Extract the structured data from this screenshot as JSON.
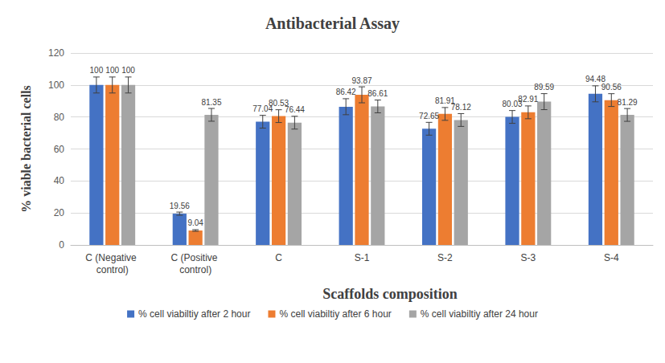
{
  "chart_data": {
    "type": "bar",
    "title": "Antibacterial Assay",
    "x_label": "Scaffolds composition",
    "y_label": "% viable bacterial cells",
    "categories": [
      "C (Negative control)",
      "C (Positive control)",
      "C",
      "S-1",
      "S-2",
      "S-3",
      "S-4"
    ],
    "series": [
      {
        "name": "% cell viabiltiy after 2 hour",
        "color": "#4472c4",
        "values": [
          100,
          19.56,
          77.04,
          86.42,
          72.65,
          80.03,
          94.48
        ],
        "errors": [
          5,
          1,
          4,
          5,
          4,
          4,
          5
        ]
      },
      {
        "name": "% cell viabiltiy after 6 hour",
        "color": "#ed7d31",
        "values": [
          100,
          9.04,
          80.53,
          93.87,
          81.91,
          82.91,
          90.56
        ],
        "errors": [
          5,
          0.5,
          4,
          5,
          4,
          4,
          4
        ]
      },
      {
        "name": "% cell viabiltiy after 24 hour",
        "color": "#a5a5a5",
        "values": [
          100,
          81.35,
          76.44,
          86.61,
          78.12,
          89.59,
          81.29
        ],
        "errors": [
          5,
          4,
          4,
          4,
          4,
          5,
          4
        ]
      }
    ],
    "ylim": [
      0,
      120
    ],
    "yticks": [
      0,
      20,
      40,
      60,
      80,
      100,
      120
    ],
    "grid": true,
    "legend": "bottom",
    "data_labels": true
  }
}
